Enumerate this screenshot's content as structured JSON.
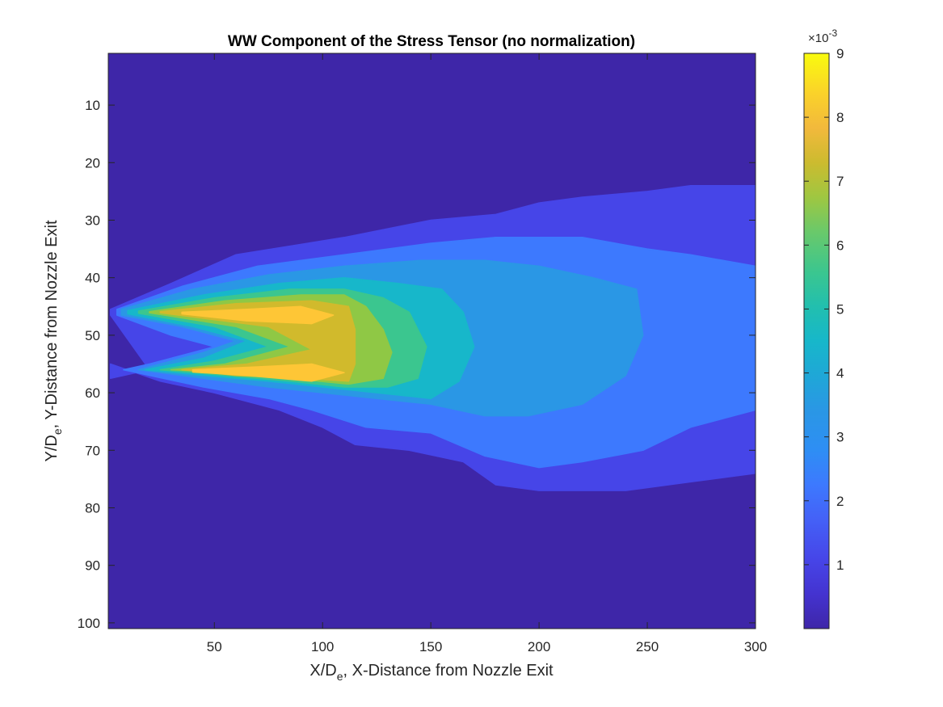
{
  "chart_data": {
    "type": "heatmap",
    "subtype": "filled-contour",
    "title": "WW Component of the Stress Tensor (no normalization)",
    "xlabel": {
      "main": "X/D",
      "sub": "e",
      "rest": ", X-Distance from Nozzle Exit"
    },
    "ylabel": {
      "main": "Y/D",
      "sub": "e",
      "rest": ",  Y-Distance from Nozzle Exit"
    },
    "xlim": [
      1,
      300
    ],
    "ylim": [
      1,
      101
    ],
    "y_reversed": true,
    "x_ticks": [
      "50",
      "100",
      "150",
      "200",
      "250",
      "300"
    ],
    "y_ticks": [
      "10",
      "20",
      "30",
      "40",
      "50",
      "60",
      "70",
      "80",
      "90",
      "100"
    ],
    "colorbar": {
      "colormap": "parula",
      "range": [
        0.0,
        0.009
      ],
      "ticks": [
        "1",
        "2",
        "3",
        "4",
        "5",
        "6",
        "7",
        "8",
        "9"
      ],
      "exponent": {
        "base": "×10",
        "power": "-3"
      }
    },
    "levels": [
      {
        "level": 0.0,
        "color": "#3e26a8"
      },
      {
        "level": 1.0,
        "color": "#4645e8"
      },
      {
        "level": 2.0,
        "color": "#3d79fe"
      },
      {
        "level": 3.0,
        "color": "#2a97e5"
      },
      {
        "level": 4.0,
        "color": "#17b7ca"
      },
      {
        "level": 5.0,
        "color": "#3bc68f"
      },
      {
        "level": 6.0,
        "color": "#8fc845"
      },
      {
        "level": 7.0,
        "color": "#d1ba2c"
      },
      {
        "level": 8.0,
        "color": "#fec636"
      }
    ],
    "regions": [
      {
        "level": 1,
        "points": [
          [
            2,
            45.5
          ],
          [
            30,
            41
          ],
          [
            60,
            36
          ],
          [
            110,
            33
          ],
          [
            150,
            30
          ],
          [
            180,
            29
          ],
          [
            200,
            27
          ],
          [
            220,
            26
          ],
          [
            250,
            25
          ],
          [
            270,
            24
          ],
          [
            300,
            24
          ],
          [
            300,
            74
          ],
          [
            270,
            75.5
          ],
          [
            240,
            77
          ],
          [
            200,
            77
          ],
          [
            180,
            76
          ],
          [
            165,
            72
          ],
          [
            140,
            70
          ],
          [
            115,
            69
          ],
          [
            100,
            66
          ],
          [
            80,
            63
          ],
          [
            50,
            60
          ],
          [
            25,
            58
          ],
          [
            2,
            55
          ],
          [
            2,
            57.5
          ],
          [
            20,
            56
          ],
          [
            2,
            46.5
          ]
        ]
      },
      {
        "level": 2,
        "points": [
          [
            5,
            45.5
          ],
          [
            35,
            41.5
          ],
          [
            70,
            38
          ],
          [
            110,
            36
          ],
          [
            150,
            34
          ],
          [
            180,
            33
          ],
          [
            220,
            33
          ],
          [
            250,
            35
          ],
          [
            270,
            36
          ],
          [
            300,
            38
          ],
          [
            300,
            63
          ],
          [
            270,
            66
          ],
          [
            248,
            70
          ],
          [
            220,
            72
          ],
          [
            200,
            73
          ],
          [
            175,
            71
          ],
          [
            150,
            67
          ],
          [
            120,
            66
          ],
          [
            95,
            63
          ],
          [
            75,
            61
          ],
          [
            45,
            59
          ],
          [
            20,
            57
          ],
          [
            8,
            56
          ],
          [
            20,
            55
          ],
          [
            50,
            52
          ],
          [
            30,
            50
          ],
          [
            5,
            46.5
          ]
        ]
      },
      {
        "level": 3,
        "points": [
          [
            7,
            45.5
          ],
          [
            40,
            42
          ],
          [
            75,
            39.5
          ],
          [
            110,
            38
          ],
          [
            145,
            37
          ],
          [
            175,
            37
          ],
          [
            200,
            38
          ],
          [
            225,
            40
          ],
          [
            245,
            42
          ],
          [
            248,
            50
          ],
          [
            240,
            57
          ],
          [
            220,
            62
          ],
          [
            195,
            64
          ],
          [
            175,
            64
          ],
          [
            150,
            62
          ],
          [
            125,
            61
          ],
          [
            100,
            60
          ],
          [
            75,
            59
          ],
          [
            45,
            57.5
          ],
          [
            15,
            56
          ],
          [
            45,
            53
          ],
          [
            60,
            51
          ],
          [
            35,
            48.5
          ],
          [
            7,
            46.5
          ]
        ]
      },
      {
        "level": 4,
        "points": [
          [
            10,
            45.7
          ],
          [
            45,
            43
          ],
          [
            80,
            41
          ],
          [
            110,
            40
          ],
          [
            135,
            41
          ],
          [
            155,
            42
          ],
          [
            165,
            46
          ],
          [
            170,
            52
          ],
          [
            163,
            58
          ],
          [
            150,
            61
          ],
          [
            125,
            60
          ],
          [
            100,
            59
          ],
          [
            75,
            58
          ],
          [
            45,
            57
          ],
          [
            18,
            56
          ],
          [
            45,
            54
          ],
          [
            65,
            51
          ],
          [
            40,
            48.5
          ],
          [
            10,
            46.3
          ]
        ]
      },
      {
        "level": 5,
        "points": [
          [
            15,
            45.8
          ],
          [
            50,
            43.5
          ],
          [
            85,
            42
          ],
          [
            110,
            42
          ],
          [
            128,
            43.5
          ],
          [
            140,
            46
          ],
          [
            148,
            52
          ],
          [
            144,
            57.5
          ],
          [
            130,
            59
          ],
          [
            110,
            59
          ],
          [
            85,
            58
          ],
          [
            55,
            57
          ],
          [
            25,
            56
          ],
          [
            50,
            54.5
          ],
          [
            75,
            52
          ],
          [
            50,
            48.5
          ],
          [
            15,
            46.2
          ]
        ]
      },
      {
        "level": 6,
        "points": [
          [
            20,
            45.9
          ],
          [
            55,
            44
          ],
          [
            90,
            43
          ],
          [
            110,
            43
          ],
          [
            120,
            45
          ],
          [
            128,
            49
          ],
          [
            132,
            53
          ],
          [
            128,
            57.5
          ],
          [
            112,
            58.5
          ],
          [
            85,
            57.5
          ],
          [
            55,
            56.5
          ],
          [
            30,
            56
          ],
          [
            55,
            55
          ],
          [
            85,
            52
          ],
          [
            60,
            48.5
          ],
          [
            20,
            46.1
          ]
        ]
      },
      {
        "level": 7,
        "points": [
          [
            25,
            45.9
          ],
          [
            60,
            44.5
          ],
          [
            95,
            44
          ],
          [
            112,
            45
          ],
          [
            115,
            49
          ],
          [
            115,
            55
          ],
          [
            112,
            58
          ],
          [
            90,
            57.5
          ],
          [
            60,
            57
          ],
          [
            35,
            56
          ],
          [
            65,
            55
          ],
          [
            95,
            52.5
          ],
          [
            75,
            48.5
          ],
          [
            25,
            46.1
          ]
        ]
      },
      {
        "level": 8,
        "points": [
          [
            35,
            46
          ],
          [
            65,
            45.5
          ],
          [
            90,
            45
          ],
          [
            105,
            46.5
          ],
          [
            95,
            48
          ],
          [
            65,
            47.5
          ],
          [
            35,
            46.3
          ]
        ]
      },
      {
        "level": 8,
        "points": [
          [
            40,
            56
          ],
          [
            70,
            55.5
          ],
          [
            95,
            55
          ],
          [
            110,
            56.5
          ],
          [
            95,
            58
          ],
          [
            65,
            57
          ],
          [
            40,
            56.4
          ]
        ]
      }
    ]
  }
}
